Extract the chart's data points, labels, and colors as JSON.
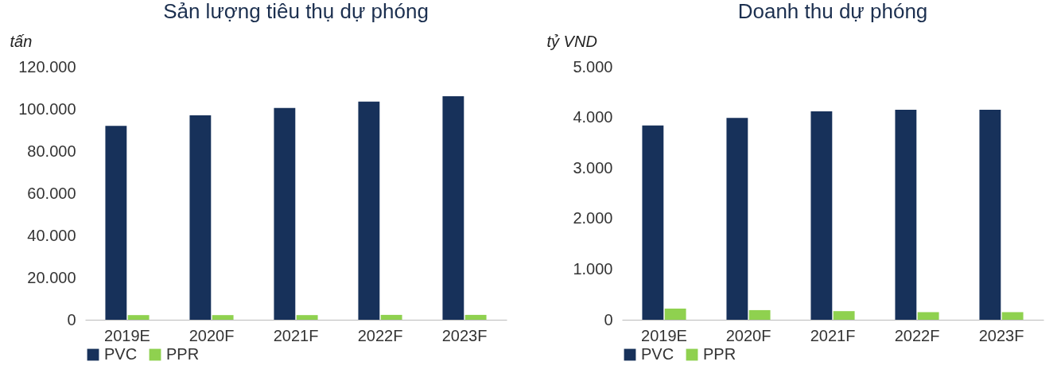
{
  "chart_data": [
    {
      "type": "bar",
      "title": "Sản lượng tiêu thụ dự phóng",
      "ylabel": "tấn",
      "categories": [
        "2019E",
        "2020F",
        "2021F",
        "2022F",
        "2023F"
      ],
      "series": [
        {
          "name": "PVC",
          "color": "#17315a",
          "values": [
            92000,
            97000,
            100500,
            103500,
            106000
          ]
        },
        {
          "name": "PPR",
          "color": "#8fd14f",
          "values": [
            2200,
            2200,
            2200,
            2300,
            2300
          ]
        }
      ],
      "ylim": [
        0,
        120000
      ],
      "yticks": [
        {
          "value": 0,
          "label": "0"
        },
        {
          "value": 20000,
          "label": "20.000"
        },
        {
          "value": 40000,
          "label": "40.000"
        },
        {
          "value": 60000,
          "label": "60.000"
        },
        {
          "value": 80000,
          "label": "80.000"
        },
        {
          "value": 100000,
          "label": "100.000"
        },
        {
          "value": 120000,
          "label": "120.000"
        }
      ],
      "grid": false,
      "legend": "bottom"
    },
    {
      "type": "bar",
      "title": "Doanh thu dự phóng",
      "ylabel": "tỷ VND",
      "categories": [
        "2019E",
        "2020F",
        "2021F",
        "2022F",
        "2023F"
      ],
      "series": [
        {
          "name": "PVC",
          "color": "#17315a",
          "values": [
            3840,
            3990,
            4120,
            4150,
            4150
          ]
        },
        {
          "name": "PPR",
          "color": "#8fd14f",
          "values": [
            220,
            190,
            170,
            150,
            150
          ]
        }
      ],
      "ylim": [
        0,
        5000
      ],
      "yticks": [
        {
          "value": 0,
          "label": "0"
        },
        {
          "value": 1000,
          "label": "1.000"
        },
        {
          "value": 2000,
          "label": "2.000"
        },
        {
          "value": 3000,
          "label": "3.000"
        },
        {
          "value": 4000,
          "label": "4.000"
        },
        {
          "value": 5000,
          "label": "5.000"
        }
      ],
      "grid": false,
      "legend": "bottom"
    }
  ]
}
